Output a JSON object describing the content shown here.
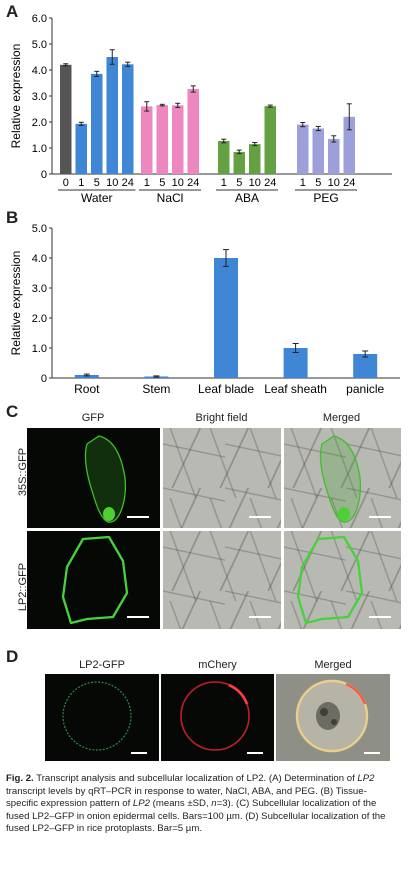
{
  "panels": {
    "a": "A",
    "b": "B",
    "c": "C",
    "d": "D"
  },
  "chart_data": [
    {
      "type": "bar",
      "ylabel": "Relative expression",
      "ylim": [
        0,
        6.0
      ],
      "yticks": [
        "0",
        "1.0",
        "2.0",
        "3.0",
        "4.0",
        "5.0",
        "6.0"
      ],
      "groups": [
        {
          "name": "Water",
          "color": "#3f86d4",
          "first_bar_color": "#555555",
          "categories": [
            "0",
            "1",
            "5",
            "10",
            "24"
          ],
          "values": [
            4.2,
            1.93,
            3.85,
            4.5,
            4.22
          ],
          "errors": [
            0.04,
            0.06,
            0.1,
            0.28,
            0.08
          ]
        },
        {
          "name": "NaCl",
          "color": "#ee86c0",
          "categories": [
            "1",
            "5",
            "10",
            "24"
          ],
          "values": [
            2.6,
            2.65,
            2.64,
            3.27
          ],
          "errors": [
            0.18,
            0.03,
            0.08,
            0.12
          ]
        },
        {
          "name": "ABA",
          "color": "#65a043",
          "categories": [
            "1",
            "5",
            "10",
            "24"
          ],
          "values": [
            1.27,
            0.85,
            1.15,
            2.61
          ],
          "errors": [
            0.07,
            0.07,
            0.06,
            0.04
          ]
        },
        {
          "name": "PEG",
          "color": "#9c9fda",
          "categories": [
            "1",
            "5",
            "10",
            "24"
          ],
          "values": [
            1.9,
            1.75,
            1.35,
            2.2
          ],
          "errors": [
            0.08,
            0.08,
            0.12,
            0.5
          ]
        }
      ]
    },
    {
      "type": "bar",
      "ylabel": "Relative expression",
      "ylim": [
        0,
        5.0
      ],
      "yticks": [
        "0",
        "1.0",
        "2.0",
        "3.0",
        "4.0",
        "5.0"
      ],
      "color": "#3f86d4",
      "categories": [
        "Root",
        "Stem",
        "Leaf blade",
        "Leaf sheath",
        "panicle"
      ],
      "values": [
        0.1,
        0.05,
        4.0,
        1.0,
        0.8
      ],
      "errors": [
        0.03,
        0.02,
        0.28,
        0.15,
        0.1
      ]
    }
  ],
  "panel_c": {
    "columns": [
      "GFP",
      "Bright field",
      "Merged"
    ],
    "rows": [
      "35S::GFP",
      "LP2::GFP"
    ]
  },
  "panel_d": {
    "columns": [
      "LP2-GFP",
      "mChery",
      "Merged"
    ]
  },
  "caption": {
    "label": "Fig. 2.",
    "parts": [
      " Transcript analysis and subcellular localization of LP2. (A) Determination of ",
      "LP2",
      " transcript levels by qRT–PCR in response to water, NaCl, ABA, and PEG. (B) Tissue-specific expression pattern of ",
      "LP2",
      " (means ±SD, ",
      "n",
      "=3). (C) Subcellular localization of the fused LP2–GFP in onion epidermal cells. Bars=100 µm. (D) Subcellular localization of the fused LP2–GFP in rice protoplasts. Bar=5 µm."
    ]
  }
}
